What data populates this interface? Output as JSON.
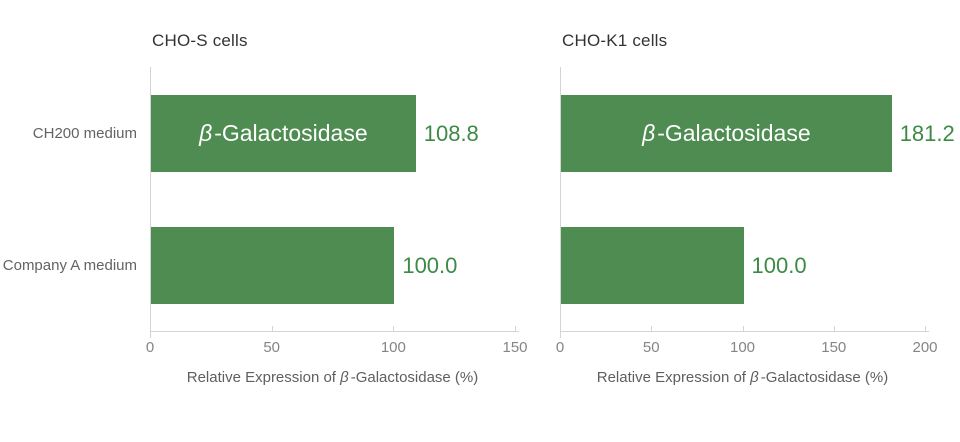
{
  "figure": {
    "background": "#ffffff"
  },
  "colors": {
    "bar": "#4e8c52",
    "value_text": "#3d8a46",
    "bar_label_text": "#ffffff",
    "axis_line": "#d4d4d4",
    "tick_label": "#858585",
    "axis_title": "#5f5f5f",
    "category_label": "#636363",
    "chart_title": "#333333"
  },
  "chart_data": [
    {
      "type": "bar",
      "orientation": "horizontal",
      "title": "CHO-S cells",
      "categories": [
        "CH200 medium",
        "Company A medium"
      ],
      "values": [
        108.8,
        100.0
      ],
      "value_labels": [
        "108.8",
        "100.0"
      ],
      "bar_labels": [
        "β-Galactosidase",
        ""
      ],
      "xlabel": "Relative Expression of β-Galactosidase (%)",
      "xlim": [
        0,
        150
      ],
      "xticks": [
        0,
        50,
        100,
        150
      ],
      "show_category_labels": true,
      "grid": false,
      "legend": false
    },
    {
      "type": "bar",
      "orientation": "horizontal",
      "title": "CHO-K1 cells",
      "categories": [
        "CH200 medium",
        "Company A medium"
      ],
      "values": [
        181.2,
        100.0
      ],
      "value_labels": [
        "181.2",
        "100.0"
      ],
      "bar_labels": [
        "β-Galactosidase",
        ""
      ],
      "xlabel": "Relative Expression of β-Galactosidase (%)",
      "xlim": [
        0,
        200
      ],
      "xticks": [
        0,
        50,
        100,
        150,
        200
      ],
      "show_category_labels": false,
      "grid": false,
      "legend": false
    }
  ]
}
